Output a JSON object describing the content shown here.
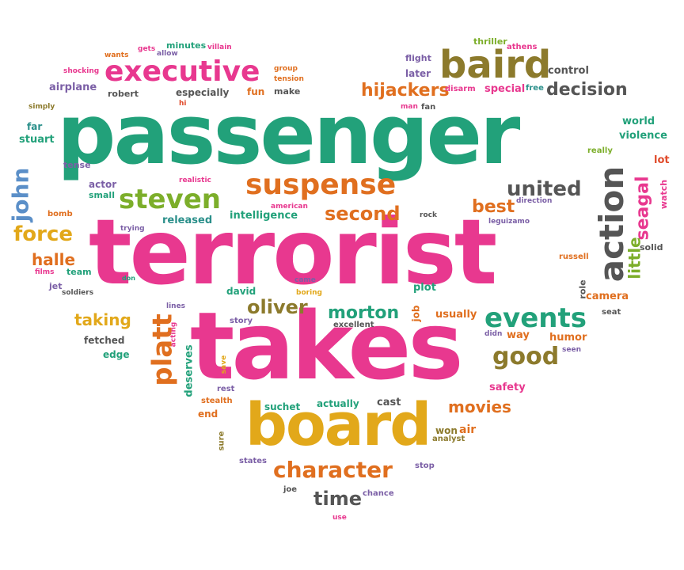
{
  "palette": {
    "green": "#22a17a",
    "pink": "#e8388f",
    "orange": "#e06f1f",
    "yellow": "#e2a81a",
    "olive": "#8c7a2c",
    "gray": "#555555",
    "purple": "#7b5fa6",
    "blue": "#5b8fc8",
    "lime": "#7cae2a",
    "red": "#e04a2a",
    "teal": "#2a8f8a"
  },
  "words": [
    {
      "text": "passenger",
      "color": "green"
    },
    {
      "text": "terrorist",
      "color": "pink"
    },
    {
      "text": "takes",
      "color": "pink"
    },
    {
      "text": "board",
      "color": "yellow"
    },
    {
      "text": "baird",
      "color": "olive"
    },
    {
      "text": "executive",
      "color": "pink"
    },
    {
      "text": "suspense",
      "color": "orange"
    },
    {
      "text": "action",
      "color": "gray"
    },
    {
      "text": "steven",
      "color": "lime"
    },
    {
      "text": "events",
      "color": "green"
    },
    {
      "text": "platt",
      "color": "orange"
    },
    {
      "text": "character",
      "color": "orange"
    },
    {
      "text": "john",
      "color": "blue"
    },
    {
      "text": "force",
      "color": "yellow"
    },
    {
      "text": "seagal",
      "color": "pink"
    },
    {
      "text": "united",
      "color": "gray"
    },
    {
      "text": "second",
      "color": "orange"
    },
    {
      "text": "hijackers",
      "color": "orange"
    },
    {
      "text": "decision",
      "color": "gray"
    },
    {
      "text": "good",
      "color": "olive"
    },
    {
      "text": "oliver",
      "color": "olive"
    },
    {
      "text": "morton",
      "color": "green"
    },
    {
      "text": "time",
      "color": "gray"
    },
    {
      "text": "little",
      "color": "lime"
    },
    {
      "text": "best",
      "color": "orange"
    },
    {
      "text": "movies",
      "color": "orange"
    },
    {
      "text": "taking",
      "color": "yellow"
    },
    {
      "text": "halle",
      "color": "orange"
    },
    {
      "text": "intelligence",
      "color": "green"
    },
    {
      "text": "released",
      "color": "teal"
    },
    {
      "text": "flight",
      "color": "purple"
    },
    {
      "text": "later",
      "color": "purple"
    },
    {
      "text": "control",
      "color": "gray"
    },
    {
      "text": "special",
      "color": "pink"
    },
    {
      "text": "free",
      "color": "teal"
    },
    {
      "text": "disarm",
      "color": "pink"
    },
    {
      "text": "thriller",
      "color": "lime"
    },
    {
      "text": "athens",
      "color": "pink"
    },
    {
      "text": "man",
      "color": "pink"
    },
    {
      "text": "fan",
      "color": "gray"
    },
    {
      "text": "world",
      "color": "green"
    },
    {
      "text": "violence",
      "color": "green"
    },
    {
      "text": "really",
      "color": "lime"
    },
    {
      "text": "lot",
      "color": "red"
    },
    {
      "text": "watch",
      "color": "pink"
    },
    {
      "text": "direction",
      "color": "purple"
    },
    {
      "text": "leguizamo",
      "color": "purple"
    },
    {
      "text": "russell",
      "color": "orange"
    },
    {
      "text": "solid",
      "color": "gray"
    },
    {
      "text": "role",
      "color": "gray"
    },
    {
      "text": "camera",
      "color": "orange"
    },
    {
      "text": "seat",
      "color": "gray"
    },
    {
      "text": "usually",
      "color": "orange"
    },
    {
      "text": "didn",
      "color": "purple"
    },
    {
      "text": "way",
      "color": "orange"
    },
    {
      "text": "humor",
      "color": "orange"
    },
    {
      "text": "seen",
      "color": "purple"
    },
    {
      "text": "safety",
      "color": "pink"
    },
    {
      "text": "won",
      "color": "olive"
    },
    {
      "text": "air",
      "color": "orange"
    },
    {
      "text": "analyst",
      "color": "olive"
    },
    {
      "text": "stop",
      "color": "purple"
    },
    {
      "text": "chance",
      "color": "purple"
    },
    {
      "text": "use",
      "color": "pink"
    },
    {
      "text": "joe",
      "color": "gray"
    },
    {
      "text": "states",
      "color": "purple"
    },
    {
      "text": "sure",
      "color": "olive"
    },
    {
      "text": "end",
      "color": "orange"
    },
    {
      "text": "stealth",
      "color": "orange"
    },
    {
      "text": "rest",
      "color": "purple"
    },
    {
      "text": "save",
      "color": "yellow"
    },
    {
      "text": "deserves",
      "color": "green"
    },
    {
      "text": "acting",
      "color": "pink"
    },
    {
      "text": "lines",
      "color": "purple"
    },
    {
      "text": "story",
      "color": "purple"
    },
    {
      "text": "excellent",
      "color": "gray"
    },
    {
      "text": "job",
      "color": "orange"
    },
    {
      "text": "plot",
      "color": "green"
    },
    {
      "text": "came",
      "color": "purple"
    },
    {
      "text": "boring",
      "color": "yellow"
    },
    {
      "text": "david",
      "color": "green"
    },
    {
      "text": "rock",
      "color": "gray"
    },
    {
      "text": "suchet",
      "color": "green"
    },
    {
      "text": "actually",
      "color": "green"
    },
    {
      "text": "cast",
      "color": "gray"
    },
    {
      "text": "fetched",
      "color": "gray"
    },
    {
      "text": "edge",
      "color": "green"
    },
    {
      "text": "soldiers",
      "color": "gray"
    },
    {
      "text": "jet",
      "color": "purple"
    },
    {
      "text": "films",
      "color": "pink"
    },
    {
      "text": "team",
      "color": "green"
    },
    {
      "text": "don",
      "color": "green"
    },
    {
      "text": "trying",
      "color": "purple"
    },
    {
      "text": "bomb",
      "color": "orange"
    },
    {
      "text": "actor",
      "color": "purple"
    },
    {
      "text": "small",
      "color": "green"
    },
    {
      "text": "american",
      "color": "pink"
    },
    {
      "text": "realistic",
      "color": "pink"
    },
    {
      "text": "tense",
      "color": "purple"
    },
    {
      "text": "far",
      "color": "teal"
    },
    {
      "text": "stuart",
      "color": "green"
    },
    {
      "text": "simply",
      "color": "olive"
    },
    {
      "text": "hi",
      "color": "red"
    },
    {
      "text": "robert",
      "color": "gray"
    },
    {
      "text": "especially",
      "color": "gray"
    },
    {
      "text": "fun",
      "color": "orange"
    },
    {
      "text": "make",
      "color": "gray"
    },
    {
      "text": "group",
      "color": "orange"
    },
    {
      "text": "tension",
      "color": "orange"
    },
    {
      "text": "airplane",
      "color": "purple"
    },
    {
      "text": "shocking",
      "color": "pink"
    },
    {
      "text": "wants",
      "color": "orange"
    },
    {
      "text": "gets",
      "color": "pink"
    },
    {
      "text": "allow",
      "color": "purple"
    },
    {
      "text": "minutes",
      "color": "green"
    },
    {
      "text": "villain",
      "color": "pink"
    }
  ]
}
